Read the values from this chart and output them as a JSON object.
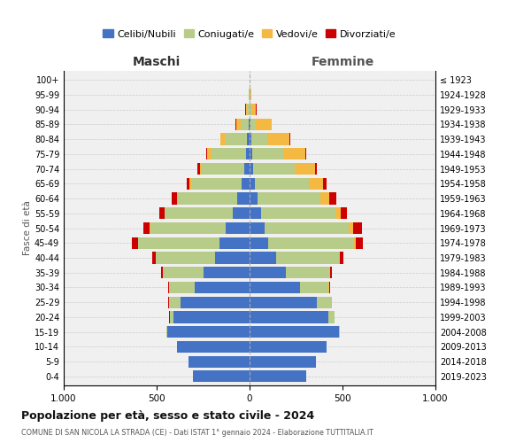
{
  "age_groups": [
    "0-4",
    "5-9",
    "10-14",
    "15-19",
    "20-24",
    "25-29",
    "30-34",
    "35-39",
    "40-44",
    "45-49",
    "50-54",
    "55-59",
    "60-64",
    "65-69",
    "70-74",
    "75-79",
    "80-84",
    "85-89",
    "90-94",
    "95-99",
    "100+"
  ],
  "birth_years": [
    "2019-2023",
    "2014-2018",
    "2009-2013",
    "2004-2008",
    "1999-2003",
    "1994-1998",
    "1989-1993",
    "1984-1988",
    "1979-1983",
    "1974-1978",
    "1969-1973",
    "1964-1968",
    "1959-1963",
    "1954-1958",
    "1949-1953",
    "1944-1948",
    "1939-1943",
    "1934-1938",
    "1929-1933",
    "1924-1928",
    "≤ 1923"
  ],
  "males": {
    "celibi": [
      305,
      330,
      390,
      445,
      410,
      370,
      295,
      250,
      185,
      160,
      130,
      90,
      65,
      45,
      30,
      20,
      12,
      5,
      2,
      1,
      0
    ],
    "coniugati": [
      0,
      0,
      0,
      5,
      20,
      65,
      135,
      215,
      320,
      440,
      405,
      365,
      320,
      270,
      225,
      185,
      115,
      45,
      10,
      3,
      0
    ],
    "vedovi": [
      0,
      0,
      0,
      0,
      0,
      0,
      1,
      1,
      2,
      2,
      3,
      4,
      5,
      8,
      14,
      22,
      28,
      22,
      8,
      2,
      0
    ],
    "divorziati": [
      0,
      0,
      0,
      0,
      1,
      2,
      5,
      10,
      18,
      30,
      35,
      25,
      28,
      14,
      10,
      8,
      4,
      3,
      2,
      0,
      0
    ]
  },
  "females": {
    "nubili": [
      305,
      355,
      415,
      480,
      425,
      360,
      270,
      195,
      145,
      100,
      80,
      60,
      42,
      28,
      18,
      14,
      10,
      5,
      2,
      1,
      0
    ],
    "coniugate": [
      0,
      0,
      0,
      5,
      30,
      80,
      155,
      235,
      335,
      460,
      455,
      400,
      340,
      290,
      225,
      165,
      85,
      28,
      8,
      2,
      0
    ],
    "vedove": [
      0,
      0,
      0,
      0,
      0,
      1,
      2,
      3,
      5,
      10,
      20,
      30,
      48,
      78,
      108,
      120,
      120,
      85,
      25,
      5,
      0
    ],
    "divorziate": [
      0,
      0,
      0,
      0,
      1,
      3,
      5,
      12,
      20,
      40,
      48,
      35,
      38,
      18,
      12,
      8,
      5,
      3,
      2,
      0,
      0
    ]
  },
  "colors": {
    "celibi_nubili": "#4472c4",
    "coniugati": "#b8cc8a",
    "vedovi": "#f4b942",
    "divorziati": "#cc0000"
  },
  "title": "Popolazione per età, sesso e stato civile - 2024",
  "subtitle": "COMUNE DI SAN NICOLA LA STRADA (CE) - Dati ISTAT 1° gennaio 2024 - Elaborazione TUTTITALIA.IT",
  "xlabel_left": "Maschi",
  "xlabel_right": "Femmine",
  "ylabel_left": "Fasce di età",
  "xlim": 1000,
  "legend_labels": [
    "Celibi/Nubili",
    "Coniugati/e",
    "Vedovi/e",
    "Divorziati/e"
  ],
  "background_color": "#ffffff",
  "plot_bg": "#f0f0f0",
  "grid_color": "#cccccc"
}
